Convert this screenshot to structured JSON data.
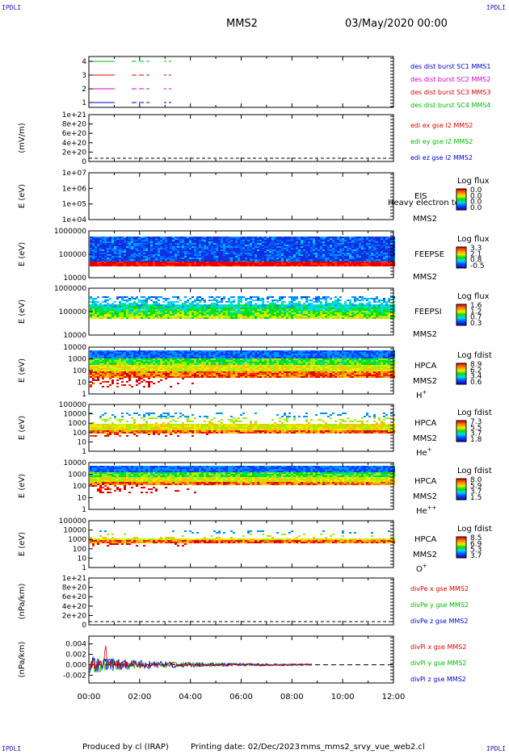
{
  "corner_label": "IPDLI",
  "header": {
    "spacecraft": "MMS2",
    "datetime": "03/May/2020 00:00"
  },
  "footer": {
    "produced_by": "Produced by cl (IRAP)",
    "printing_date": "Printing date: 02/Dec/2023",
    "script_name": "mms_mms2_srvy_vue_web2.cl"
  },
  "colors": {
    "frame": "#000000",
    "red": "#dd0000",
    "green": "#00bb00",
    "blue": "#0000cc",
    "magenta": "#cc00cc",
    "dash_axis": "#000000"
  },
  "time_axis": {
    "ticks": [
      "00:00",
      "02:00",
      "04:00",
      "06:00",
      "08:00",
      "10:00",
      "12:00"
    ],
    "range_hours": [
      0,
      12
    ]
  },
  "chart_data": [
    {
      "id": "burst",
      "type": "line",
      "yticks": [
        "4",
        "3",
        "2",
        "1"
      ],
      "series": [
        {
          "name": "des dist burst SC1 MMS1",
          "level": 1,
          "color": "blue"
        },
        {
          "name": "des dist burst SC2 MMS2",
          "level": 2,
          "color": "magenta"
        },
        {
          "name": "des dist burst SC3 MMS3",
          "level": 3,
          "color": "red"
        },
        {
          "name": "des dist burst SC4 MMS4",
          "level": 4,
          "color": "green"
        }
      ]
    },
    {
      "id": "edi",
      "type": "line",
      "ylabel": "(mV/m)",
      "yticks": [
        "1e+21",
        "8e+20",
        "6e+20",
        "4e+20",
        "2e+20",
        "0"
      ],
      "series": [
        {
          "name": "edi ex gse l2 MMS2",
          "color": "red"
        },
        {
          "name": "edi ey gse l2 MMS2",
          "color": "green"
        },
        {
          "name": "edi ez gse l2 MMS2",
          "color": "blue"
        }
      ]
    },
    {
      "id": "eis",
      "type": "heatmap",
      "ylabel": "E (eV)",
      "yticks": [
        "1e+07",
        "1e+06",
        "1e+05",
        "1e+04"
      ],
      "instrument": "EIS",
      "overlay_text": "Heavy electron to",
      "spacecraft": "MMS2",
      "cbar_title": "Log flux",
      "cbar_ticks": [
        "0.0",
        "0.0",
        "0.0",
        "0.0"
      ]
    },
    {
      "id": "feepse",
      "type": "heatmap",
      "ylabel": "E (eV)",
      "yticks": [
        "1000000",
        "100000",
        "10000"
      ],
      "instrument": "FEEPSE",
      "spacecraft": "MMS2",
      "cbar_title": "Log flux",
      "cbar_ticks": [
        "3.3",
        "2.1",
        "0.8",
        "-0.5"
      ]
    },
    {
      "id": "feepsi",
      "type": "heatmap",
      "ylabel": "E (eV)",
      "yticks": [
        "1000000",
        "100000",
        "10000"
      ],
      "instrument": "FEEPSI",
      "spacecraft": "MMS2",
      "cbar_title": "Log flux",
      "cbar_ticks": [
        "1.6",
        "1.2",
        "0.7",
        "0.3"
      ]
    },
    {
      "id": "hpca_h",
      "type": "heatmap",
      "ylabel": "E (eV)",
      "yticks": [
        "10000",
        "1000",
        "100",
        "10",
        "1"
      ],
      "instrument": "HPCA",
      "spacecraft": "MMS2",
      "species": "H",
      "species_sup": "+",
      "cbar_title": "Log fdist",
      "cbar_ticks": [
        "8.9",
        "6.2",
        "3.4",
        "0.6"
      ]
    },
    {
      "id": "hpca_he",
      "type": "heatmap",
      "ylabel": "E (eV)",
      "yticks": [
        "100000",
        "10000",
        "1000",
        "100",
        "10",
        "1"
      ],
      "instrument": "HPCA",
      "spacecraft": "MMS2",
      "species": "He",
      "species_sup": "+",
      "cbar_title": "Log fdist",
      "cbar_ticks": [
        "7.3",
        "5.5",
        "3.7",
        "1.8"
      ]
    },
    {
      "id": "hpca_hepp",
      "type": "heatmap",
      "ylabel": "E (eV)",
      "yticks": [
        "10000",
        "1000",
        "100",
        "10",
        "1"
      ],
      "instrument": "HPCA",
      "spacecraft": "MMS2",
      "species": "He",
      "species_sup": "++",
      "cbar_title": "Log fdist",
      "cbar_ticks": [
        "8.0",
        "5.9",
        "3.7",
        "1.5"
      ]
    },
    {
      "id": "hpca_o",
      "type": "heatmap",
      "ylabel": "E (eV)",
      "yticks": [
        "100000",
        "10000",
        "1000",
        "100",
        "10",
        "1"
      ],
      "instrument": "HPCA",
      "spacecraft": "MMS2",
      "species": "O",
      "species_sup": "+",
      "cbar_title": "Log fdist",
      "cbar_ticks": [
        "8.5",
        "6.9",
        "5.3",
        "3.7"
      ]
    },
    {
      "id": "divpe",
      "type": "line",
      "ylabel": "(nPa/km)",
      "yticks": [
        "1e+21",
        "8e+20",
        "6e+20",
        "4e+20",
        "2e+20",
        "0"
      ],
      "series": [
        {
          "name": "divPe x gse MMS2",
          "color": "red"
        },
        {
          "name": "divPe y gse MMS2",
          "color": "green"
        },
        {
          "name": "divPe z gse MMS2",
          "color": "blue"
        }
      ]
    },
    {
      "id": "divpi",
      "type": "line",
      "ylabel": "(nPa/km)",
      "yticks": [
        "0.004",
        "0.002",
        "0.000",
        "-0.002"
      ],
      "ylim": [
        -0.0035,
        0.0055
      ],
      "data_end_hours": 8.8,
      "series": [
        {
          "name": "divPi x gse MMS2",
          "color": "red"
        },
        {
          "name": "divPi y gse MMS2",
          "color": "green"
        },
        {
          "name": "divPi z gse MMS2",
          "color": "blue"
        }
      ]
    }
  ]
}
